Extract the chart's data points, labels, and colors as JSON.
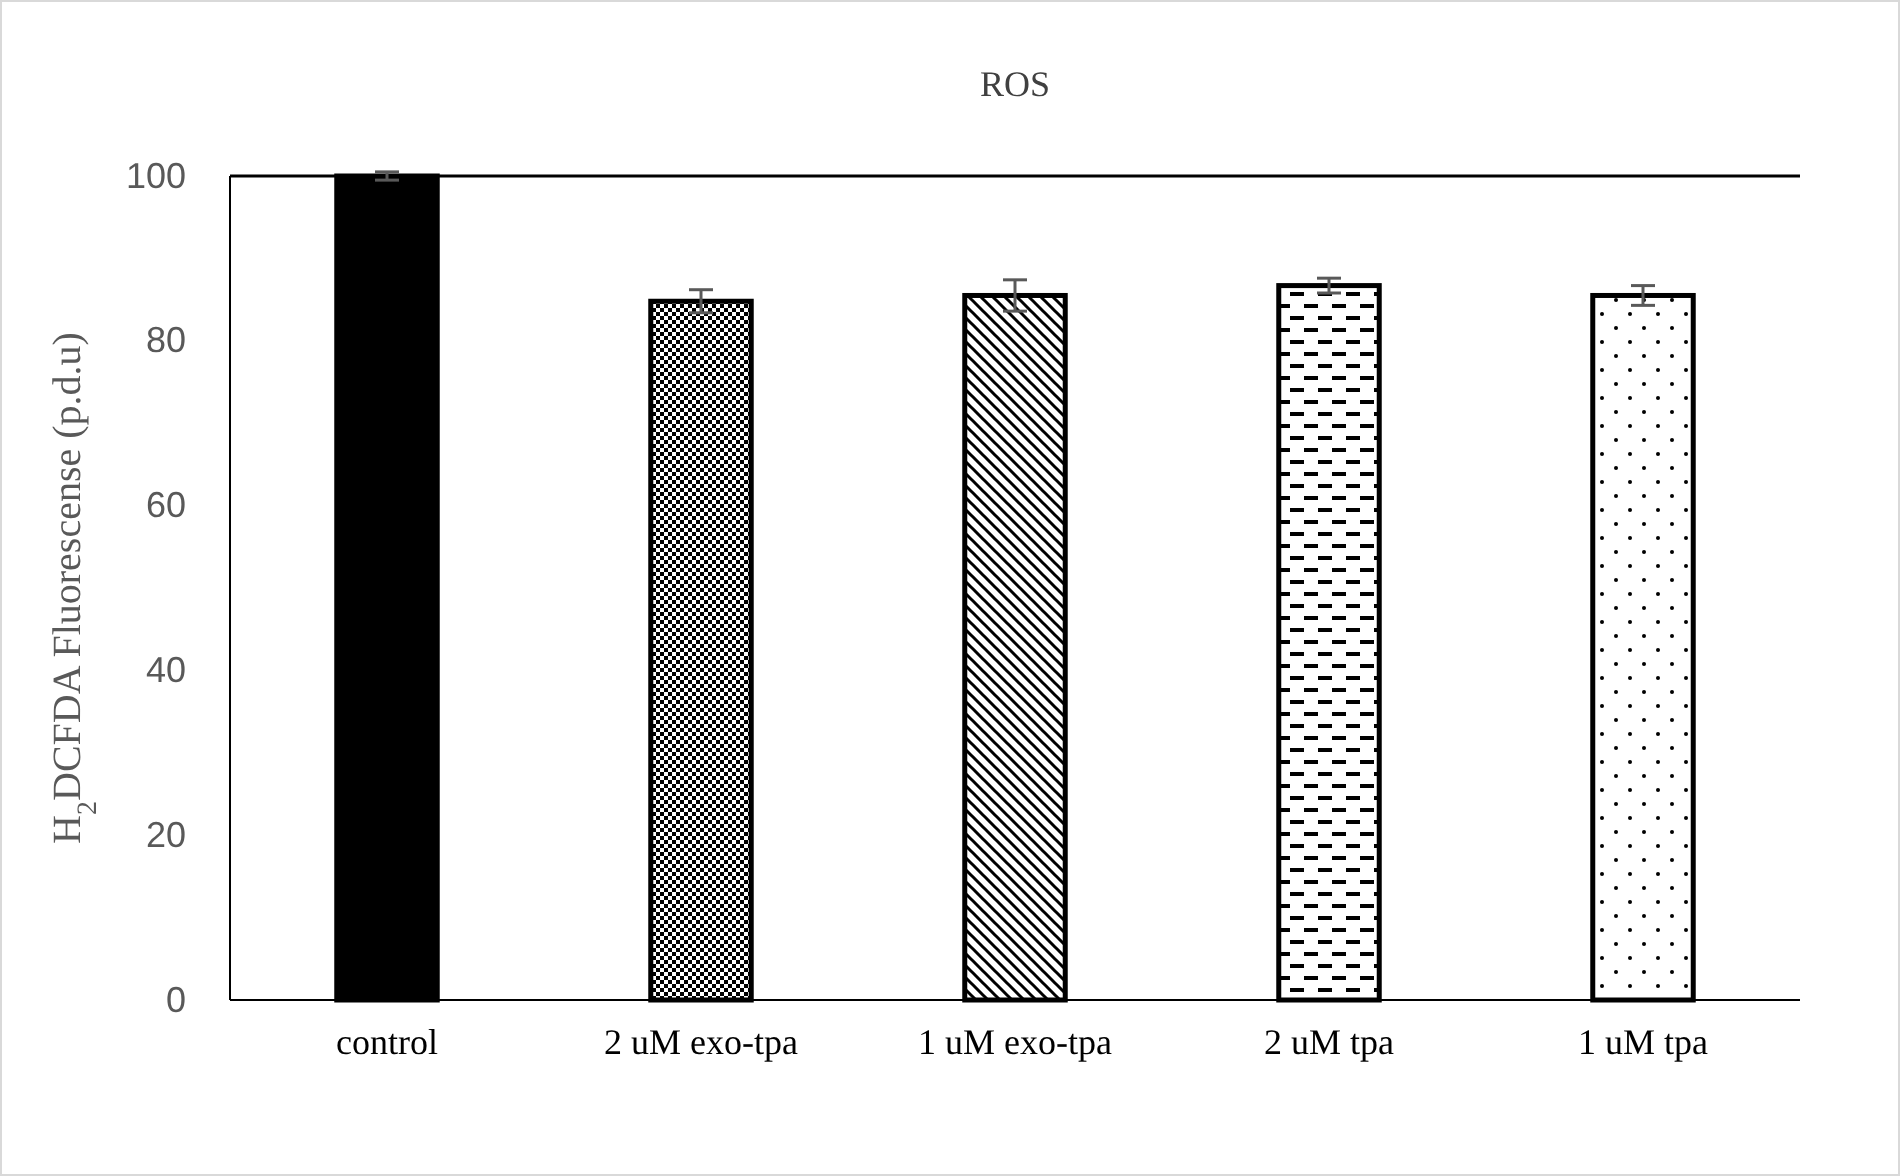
{
  "chart_data": {
    "type": "bar",
    "title": "ROS",
    "ylabel": "H$_{2}$DCFDA Fluorescense (p.d.u)",
    "categories": [
      "control",
      "2 uM exo-tpa",
      "1 uM exo-tpa",
      "2 uM tpa",
      "1 uM tpa"
    ],
    "values": [
      100,
      84.8,
      85.5,
      86.7,
      85.5
    ],
    "errors": [
      0.5,
      1.4,
      1.9,
      0.9,
      1.2
    ],
    "colors": [
      "#000000",
      "#000000",
      "#000000",
      "#000000",
      "#000000"
    ],
    "ylim": [
      0,
      100
    ],
    "yticks": [
      0,
      20,
      40,
      60,
      80,
      100
    ],
    "grid": false
  }
}
